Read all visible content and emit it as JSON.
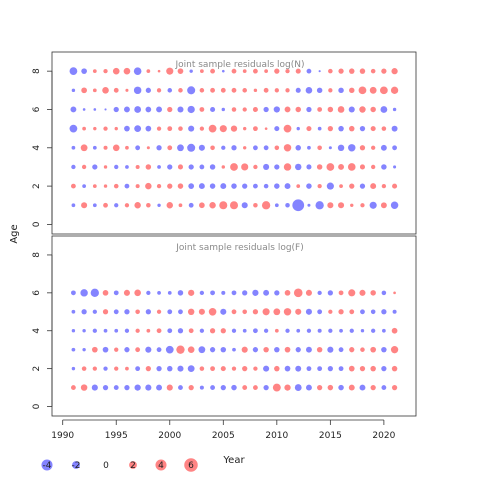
{
  "chart_data": {
    "type": "scatter",
    "subtype": "bubble-residuals",
    "ylabel": "Age",
    "xlabel": "Year",
    "xticks": [
      1990,
      1995,
      2000,
      2005,
      2010,
      2015,
      2020
    ],
    "yticks": [
      0,
      2,
      4,
      6,
      8
    ],
    "xlim": [
      1989,
      2023
    ],
    "ylim": [
      -0.5,
      9
    ],
    "years": [
      1991,
      1992,
      1993,
      1994,
      1995,
      1996,
      1997,
      1998,
      1999,
      2000,
      2001,
      2002,
      2003,
      2004,
      2005,
      2006,
      2007,
      2008,
      2009,
      2010,
      2011,
      2012,
      2013,
      2014,
      2015,
      2016,
      2017,
      2018,
      2019,
      2020,
      2021
    ],
    "negative_color": "#5050ff",
    "positive_color": "#ff5050",
    "panels": [
      {
        "title": "Joint sample residuals log(N)",
        "ages": [
          1,
          2,
          3,
          4,
          5,
          6,
          7,
          8
        ],
        "residuals": [
          [
            -0.6,
            1.6,
            -0.6,
            1.0,
            -0.8,
            0.8,
            1.8,
            0.9,
            -0.5,
            1.8,
            0.6,
            -1.0,
            1.4,
            1.8,
            2.8,
            2.8,
            -1.6,
            0.9,
            3.0,
            -0.6,
            -0.9,
            -6.0,
            -0.4,
            -3.0,
            1.6,
            1.6,
            0.5,
            0.8,
            -2.2,
            1.5,
            -2.4
          ],
          [
            1.0,
            -0.6,
            0.6,
            0.5,
            0.9,
            -1.0,
            0.7,
            1.8,
            0.8,
            1.2,
            1.3,
            -1.4,
            -1.5,
            -1.3,
            -1.5,
            -1.3,
            -1.2,
            -1.0,
            -0.9,
            -1.3,
            -1.5,
            0.6,
            -1.3,
            0.8,
            -2.2,
            0.6,
            1.2,
            -1.2,
            1.5,
            0.8,
            1.1
          ],
          [
            -0.8,
            0.8,
            -1.2,
            0.5,
            -0.8,
            -0.6,
            0.7,
            1.3,
            -0.6,
            -1.2,
            1.1,
            -1.2,
            -1.0,
            -1.3,
            0.5,
            2.6,
            2.2,
            0.8,
            -1.6,
            -1.2,
            2.4,
            -1.8,
            -1.1,
            1.3,
            2.6,
            1.5,
            2.5,
            1.1,
            0.8,
            -1.3,
            -0.4
          ],
          [
            -0.6,
            2.0,
            -0.6,
            0.7,
            1.9,
            0.6,
            -1.0,
            0.4,
            -1.2,
            1.0,
            -2.0,
            -2.8,
            -1.6,
            0.9,
            -0.8,
            -1.2,
            0.5,
            -1.0,
            -1.0,
            0.9,
            2.4,
            -1.3,
            -0.6,
            0.9,
            -0.4,
            -1.8,
            -2.4,
            1.2,
            0.8,
            -1.5,
            -1.0
          ],
          [
            -2.6,
            0.6,
            0.5,
            0.8,
            0.5,
            -1.4,
            -2.0,
            -1.4,
            0.8,
            1.0,
            0.9,
            -1.6,
            0.8,
            2.6,
            2.2,
            1.7,
            0.5,
            1.0,
            0.3,
            -1.1,
            2.6,
            -0.5,
            1.1,
            -0.6,
            1.2,
            -1.3,
            1.3,
            -1.2,
            1.1,
            0.9,
            -1.5
          ],
          [
            -1.5,
            -0.3,
            -0.3,
            -0.2,
            -1.2,
            -1.5,
            -2.0,
            -1.4,
            -1.5,
            1.2,
            -1.6,
            -2.3,
            1.0,
            -1.1,
            -0.5,
            0.9,
            0.8,
            1.1,
            -1.2,
            -1.7,
            1.5,
            1.3,
            -1.2,
            1.0,
            1.3,
            1.9,
            -1.6,
            1.8,
            1.3,
            -2.0,
            -0.5
          ],
          [
            -0.5,
            1.4,
            0.6,
            1.9,
            1.0,
            0.4,
            -2.4,
            -1.2,
            0.8,
            -0.9,
            0.9,
            -2.8,
            0.9,
            1.0,
            1.0,
            1.0,
            0.9,
            0.5,
            1.0,
            0.8,
            0.8,
            -1.1,
            -1.9,
            -1.3,
            0.8,
            -1.3,
            1.3,
            2.6,
            2.0,
            2.6,
            2.3
          ],
          [
            -2.6,
            -1.4,
            0.6,
            0.8,
            1.9,
            1.9,
            -2.5,
            0.6,
            0.3,
            2.2,
            1.4,
            -0.5,
            0.6,
            1.0,
            -0.3,
            1.0,
            0.6,
            1.0,
            0.6,
            1.2,
            0.8,
            1.1,
            -1.0,
            -0.2,
            0.9,
            1.2,
            1.3,
            1.3,
            0.9,
            1.2,
            1.7
          ]
        ]
      },
      {
        "title": "Joint sample residuals log(F)",
        "ages": [
          1,
          2,
          3,
          4,
          5,
          6
        ],
        "residuals": [
          [
            1.0,
            1.8,
            -1.6,
            -1.2,
            -1.0,
            -1.2,
            -1.7,
            -1.6,
            -1.5,
            1.6,
            -1.0,
            1.2,
            -0.7,
            -1.0,
            -1.2,
            -1.3,
            1.0,
            1.0,
            -1.2,
            2.7,
            1.7,
            -2.0,
            -1.5,
            1.2,
            1.3,
            -1.3,
            1.5,
            -1.5,
            1.2,
            -1.0,
            1.2
          ],
          [
            -0.5,
            0.9,
            0.8,
            -0.8,
            0.8,
            0.6,
            -1.0,
            1.2,
            -1.2,
            -1.3,
            -1.6,
            -2.0,
            0.9,
            1.0,
            1.1,
            0.8,
            1.2,
            0.8,
            -1.6,
            1.3,
            -1.4,
            -1.5,
            -1.0,
            -1.0,
            -1.2,
            -1.0,
            1.4,
            1.2,
            1.3,
            -1.2,
            1.3
          ],
          [
            -0.6,
            -0.5,
            1.4,
            -1.4,
            0.8,
            -1.2,
            1.0,
            -1.6,
            -1.0,
            -2.6,
            3.0,
            1.9,
            -2.0,
            -1.2,
            -1.3,
            -0.6,
            1.6,
            -1.2,
            1.3,
            -1.3,
            1.4,
            -1.2,
            -1.5,
            1.3,
            -1.6,
            -1.0,
            1.2,
            0.9,
            1.4,
            -1.3,
            2.3
          ],
          [
            -0.5,
            -0.5,
            -0.8,
            -0.6,
            -0.6,
            -0.8,
            0.8,
            0.6,
            1.0,
            -1.0,
            -1.2,
            1.0,
            -0.8,
            1.2,
            1.2,
            -0.8,
            -0.6,
            -1.0,
            -0.8,
            0.6,
            -0.8,
            -0.6,
            -0.8,
            -0.7,
            -0.8,
            -0.6,
            -0.8,
            -0.5,
            -0.8,
            -0.6,
            1.4
          ],
          [
            -0.6,
            -1.2,
            -0.8,
            1.2,
            -1.0,
            -1.2,
            0.9,
            -1.2,
            0.8,
            -1.0,
            -1.0,
            1.8,
            1.6,
            2.5,
            -1.6,
            1.0,
            0.9,
            1.2,
            2.2,
            2.0,
            2.4,
            1.6,
            -1.6,
            -1.0,
            0.8,
            1.2,
            1.0,
            -1.0,
            -0.9,
            -1.2,
            -0.7
          ],
          [
            -1.0,
            -2.4,
            -3.0,
            1.4,
            -1.0,
            1.6,
            1.9,
            -0.8,
            -0.6,
            -0.6,
            -1.3,
            1.7,
            -0.8,
            -1.0,
            -0.7,
            -1.0,
            -1.2,
            -1.7,
            -1.5,
            -1.2,
            1.4,
            3.2,
            1.6,
            -0.8,
            -1.2,
            1.0,
            2.2,
            1.6,
            1.3,
            -0.9,
            0.3
          ]
        ]
      }
    ],
    "legend": {
      "placement": "bottom-left",
      "values": [
        -4,
        -2,
        0,
        2,
        4,
        6
      ],
      "labels": [
        "-4",
        "-2",
        "0",
        "2",
        "4",
        "6"
      ]
    }
  }
}
